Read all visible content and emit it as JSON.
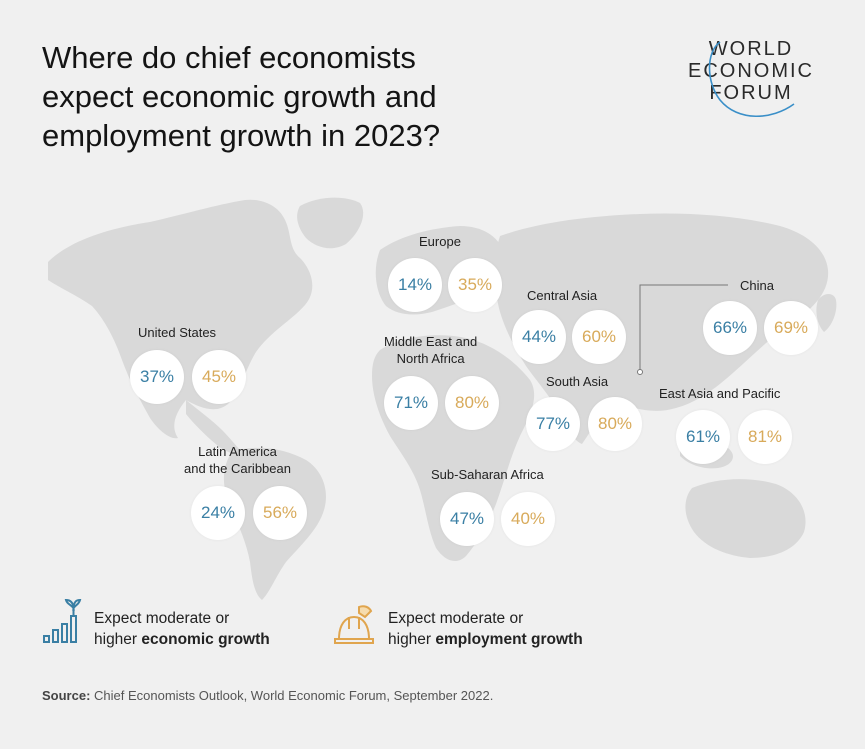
{
  "title": {
    "line1": "Where do chief economists",
    "line2": "expect economic growth and",
    "line3": "employment growth in 2023?"
  },
  "logo": {
    "line1": "WORLD",
    "line2": "ECONOMIC",
    "line3": "FORUM"
  },
  "colors": {
    "economic": "#3a7fa4",
    "employment": "#d8aa5a",
    "map_land": "#d9d9d9",
    "background": "#f0f0f0"
  },
  "regions": [
    {
      "id": "europe",
      "name_lines": [
        "Europe"
      ],
      "economic": "14%",
      "employment": "35%"
    },
    {
      "id": "united-states",
      "name_lines": [
        "United States"
      ],
      "economic": "37%",
      "employment": "45%"
    },
    {
      "id": "central-asia",
      "name_lines": [
        "Central Asia"
      ],
      "economic": "44%",
      "employment": "60%"
    },
    {
      "id": "china",
      "name_lines": [
        "China"
      ],
      "economic": "66%",
      "employment": "69%"
    },
    {
      "id": "mena",
      "name_lines": [
        "Middle East and",
        "North Africa"
      ],
      "economic": "71%",
      "employment": "80%"
    },
    {
      "id": "south-asia",
      "name_lines": [
        "South Asia"
      ],
      "economic": "77%",
      "employment": "80%"
    },
    {
      "id": "east-asia-pacific",
      "name_lines": [
        "East Asia and Pacific"
      ],
      "economic": "61%",
      "employment": "81%"
    },
    {
      "id": "latin-america",
      "name_lines": [
        "Latin America",
        "and the Caribbean"
      ],
      "economic": "24%",
      "employment": "56%"
    },
    {
      "id": "sub-saharan-africa",
      "name_lines": [
        "Sub-Saharan Africa"
      ],
      "economic": "47%",
      "employment": "40%"
    }
  ],
  "legend": {
    "economic": {
      "line1": "Expect moderate or",
      "line2_plain": "higher ",
      "line2_bold": "economic growth",
      "icon": "bar-chart-plant-icon"
    },
    "employment": {
      "line1": "Expect moderate or",
      "line2_plain": "higher ",
      "line2_bold": "employment growth",
      "icon": "hard-hat-icon"
    }
  },
  "source": {
    "label": "Source:",
    "text": " Chief Economists Outlook, World Economic Forum, September 2022."
  }
}
